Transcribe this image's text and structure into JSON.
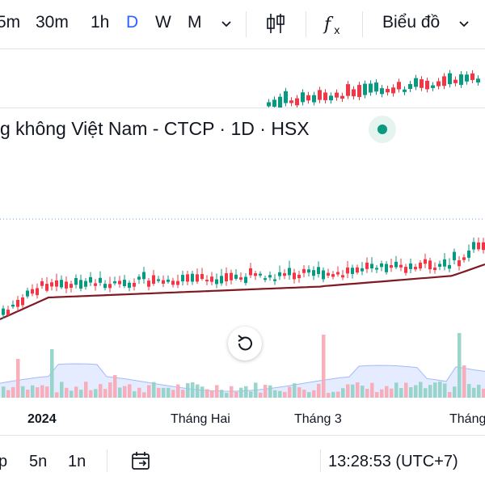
{
  "toolbar": {
    "timeframes": [
      "5m",
      "30m",
      "1h",
      "D",
      "W",
      "M"
    ],
    "active_timeframe": "D",
    "chevron": "chevron-down-icon",
    "indicators_icon": "candles-icon",
    "function_icon": "fx-icon",
    "chart_type_label": "Biểu đồ"
  },
  "symbol": {
    "title": "g không Việt Nam - CTCP · 1D · HSX",
    "status_color": "#089981"
  },
  "chart_data": {
    "type": "candlestick",
    "up_color": "#089981",
    "down_color": "#f23645",
    "ma_color": "#801922",
    "x_labels": [
      "2024",
      "Tháng Hai",
      "Tháng 3",
      "Tháng"
    ],
    "grid": false
  },
  "bottom_bar": {
    "ranges": [
      "p",
      "5n",
      "1n"
    ],
    "goto_icon": "calendar-goto-icon",
    "time": "13:28:53 (UTC+7)"
  },
  "icons": {
    "reset": "reset-chart-icon"
  }
}
